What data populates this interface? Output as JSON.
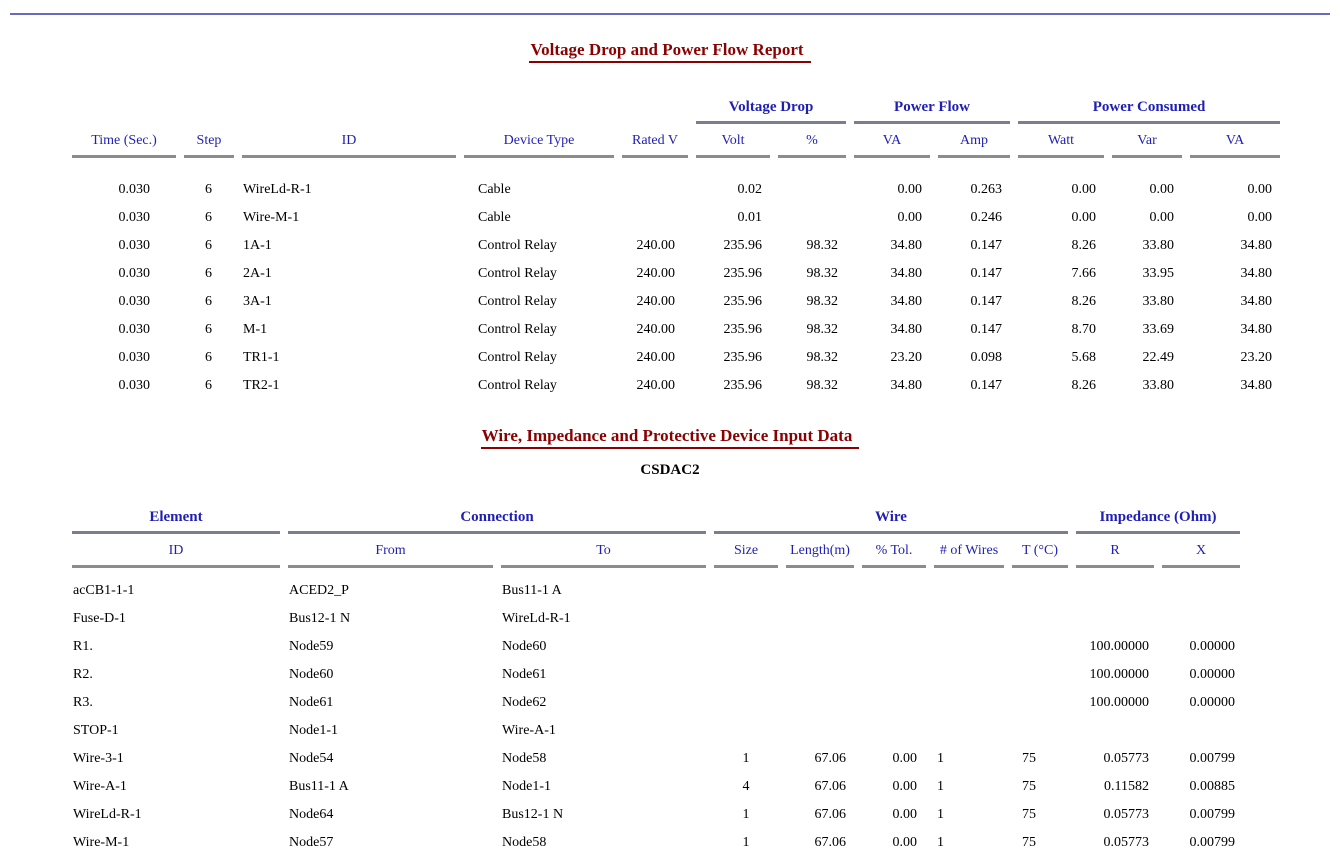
{
  "colors": {
    "title_color": "#8b0000",
    "header_color": "#1f1fb4",
    "rule_color": "#6a6abd",
    "line_color": "#8c8c8c",
    "group_line_color": "#7d7d90"
  },
  "report1": {
    "title": "Voltage Drop and Power Flow Report",
    "groups": [
      "Voltage Drop",
      "Power Flow",
      "Power Consumed"
    ],
    "columns": [
      "Time (Sec.)",
      "Step",
      "ID",
      "Device Type",
      "Rated V",
      "Volt",
      "%",
      "VA",
      "Amp",
      "Watt",
      "Var",
      "VA"
    ],
    "rows": [
      [
        "0.030",
        "6",
        "WireLd-R-1",
        "Cable",
        "",
        "0.02",
        "",
        "0.00",
        "0.263",
        "0.00",
        "0.00",
        "0.00"
      ],
      [
        "0.030",
        "6",
        "Wire-M-1",
        "Cable",
        "",
        "0.01",
        "",
        "0.00",
        "0.246",
        "0.00",
        "0.00",
        "0.00"
      ],
      [
        "0.030",
        "6",
        "1A-1",
        "Control Relay",
        "240.00",
        "235.96",
        "98.32",
        "34.80",
        "0.147",
        "8.26",
        "33.80",
        "34.80"
      ],
      [
        "0.030",
        "6",
        "2A-1",
        "Control Relay",
        "240.00",
        "235.96",
        "98.32",
        "34.80",
        "0.147",
        "7.66",
        "33.95",
        "34.80"
      ],
      [
        "0.030",
        "6",
        "3A-1",
        "Control Relay",
        "240.00",
        "235.96",
        "98.32",
        "34.80",
        "0.147",
        "8.26",
        "33.80",
        "34.80"
      ],
      [
        "0.030",
        "6",
        "M-1",
        "Control Relay",
        "240.00",
        "235.96",
        "98.32",
        "34.80",
        "0.147",
        "8.70",
        "33.69",
        "34.80"
      ],
      [
        "0.030",
        "6",
        "TR1-1",
        "Control Relay",
        "240.00",
        "235.96",
        "98.32",
        "23.20",
        "0.098",
        "5.68",
        "22.49",
        "23.20"
      ],
      [
        "0.030",
        "6",
        "TR2-1",
        "Control Relay",
        "240.00",
        "235.96",
        "98.32",
        "34.80",
        "0.147",
        "8.26",
        "33.80",
        "34.80"
      ]
    ]
  },
  "report2": {
    "title": "Wire, Impedance and Protective Device Input Data",
    "subtitle": "CSDAC2",
    "groups": [
      "Element",
      "Connection",
      "Wire",
      "Impedance (Ohm)"
    ],
    "columns": [
      "ID",
      "From",
      "To",
      "Size",
      "Length(m)",
      "% Tol.",
      "# of Wires",
      "T (°C)",
      "R",
      "X"
    ],
    "rows": [
      [
        "acCB1-1-1",
        "ACED2_P",
        "Bus11-1 A",
        "",
        "",
        "",
        "",
        "",
        "",
        ""
      ],
      [
        "Fuse-D-1",
        "Bus12-1 N",
        "WireLd-R-1",
        "",
        "",
        "",
        "",
        "",
        "",
        ""
      ],
      [
        "R1.",
        "Node59",
        "Node60",
        "",
        "",
        "",
        "",
        "",
        "100.00000",
        "0.00000"
      ],
      [
        "R2.",
        "Node60",
        "Node61",
        "",
        "",
        "",
        "",
        "",
        "100.00000",
        "0.00000"
      ],
      [
        "R3.",
        "Node61",
        "Node62",
        "",
        "",
        "",
        "",
        "",
        "100.00000",
        "0.00000"
      ],
      [
        "STOP-1",
        "Node1-1",
        "Wire-A-1",
        "",
        "",
        "",
        "",
        "",
        "",
        ""
      ],
      [
        "Wire-3-1",
        "Node54",
        "Node58",
        "1",
        "67.06",
        "0.00",
        "1",
        "75",
        "0.05773",
        "0.00799"
      ],
      [
        "Wire-A-1",
        "Bus11-1 A",
        "Node1-1",
        "4",
        "67.06",
        "0.00",
        "1",
        "75",
        "0.11582",
        "0.00885"
      ],
      [
        "WireLd-R-1",
        "Node64",
        "Bus12-1 N",
        "1",
        "67.06",
        "0.00",
        "1",
        "75",
        "0.05773",
        "0.00799"
      ],
      [
        "Wire-M-1",
        "Node57",
        "Node58",
        "1",
        "67.06",
        "0.00",
        "1",
        "75",
        "0.05773",
        "0.00799"
      ]
    ]
  }
}
